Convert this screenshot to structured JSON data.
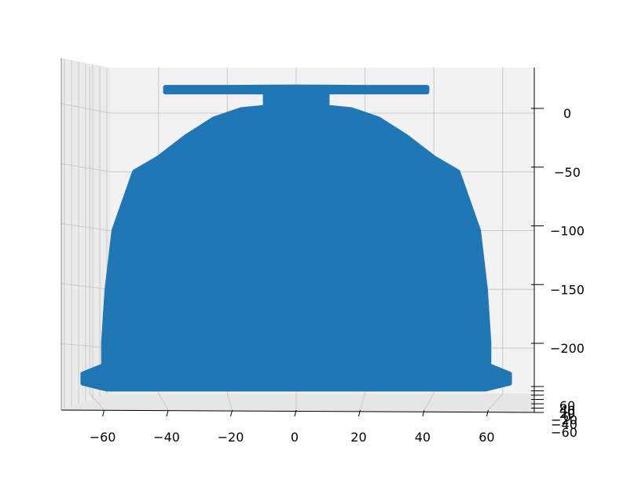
{
  "chart_data": {
    "type": "scatter3d",
    "title": "",
    "xlabel": "",
    "ylabel": "",
    "zlabel": "",
    "x_ticks": [
      -60,
      -40,
      -20,
      0,
      20,
      40,
      60
    ],
    "x_range": [
      -68,
      68
    ],
    "z_ticks": [
      0,
      -50,
      -100,
      -150,
      -200
    ],
    "z_range": [
      -235,
      20
    ],
    "y_ticks_visible": [
      "60",
      "40",
      "20",
      "0",
      "-20",
      "-40",
      "-60"
    ],
    "y_range": [
      -60,
      60
    ],
    "view": "side elevation (y axis foreshortened)",
    "marker_color": "#1f77b4",
    "grid": true,
    "pane_color": "#f2f2f2",
    "legend": "none",
    "profile": [
      {
        "z": 22,
        "radius": 38
      },
      {
        "z": 18,
        "radius": 38
      },
      {
        "z": 18,
        "radius": 9
      },
      {
        "z": 5,
        "radius": 9
      },
      {
        "z": 3,
        "radius": 16
      },
      {
        "z": -5,
        "radius": 24
      },
      {
        "z": -20,
        "radius": 32
      },
      {
        "z": -38,
        "radius": 40
      },
      {
        "z": -50,
        "radius": 47
      },
      {
        "z": -100,
        "radius": 53
      },
      {
        "z": -150,
        "radius": 55
      },
      {
        "z": -195,
        "radius": 56
      },
      {
        "z": -215,
        "radius": 56
      },
      {
        "z": -222,
        "radius": 62
      },
      {
        "z": -230,
        "radius": 62
      },
      {
        "z": -235,
        "radius": 55
      }
    ]
  }
}
